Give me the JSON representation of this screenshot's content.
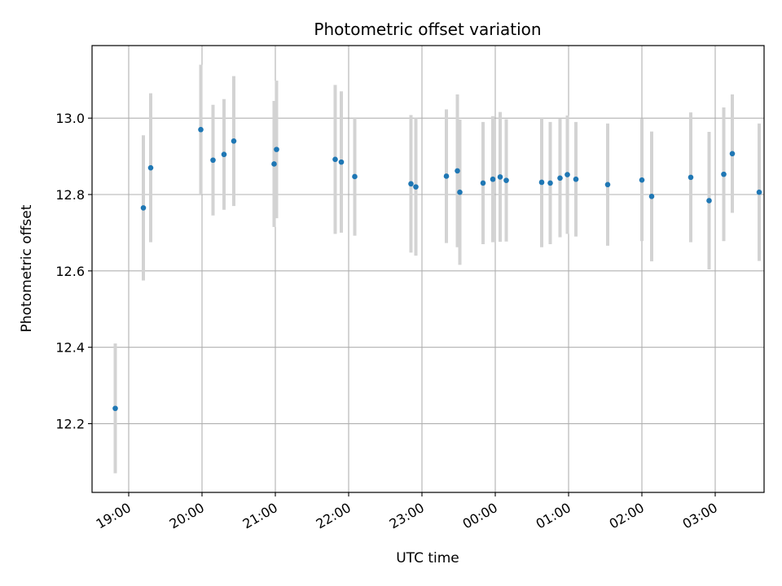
{
  "chart_data": {
    "type": "scatter",
    "title": "Photometric offset variation",
    "xlabel": "UTC time",
    "ylabel": "Photometric offset",
    "grid": true,
    "x_axis": {
      "kind": "time",
      "range": [
        "18:30",
        "03:40"
      ],
      "ticks": [
        "19:00",
        "20:00",
        "21:00",
        "22:00",
        "23:00",
        "00:00",
        "01:00",
        "02:00",
        "03:00"
      ]
    },
    "y_axis": {
      "range": [
        12.02,
        13.19
      ],
      "ticks": [
        "12.2",
        "12.4",
        "12.6",
        "12.8",
        "13.0"
      ]
    },
    "colors": {
      "points": "#1f77b4",
      "error_bars": "#d3d3d3",
      "grid": "#b0b0b0"
    },
    "series": [
      {
        "error_bars": true,
        "points": [
          {
            "x": "18:49",
            "y": 12.24,
            "yerr": 0.17
          },
          {
            "x": "19:12",
            "y": 12.765,
            "yerr": 0.19
          },
          {
            "x": "19:18",
            "y": 12.87,
            "yerr": 0.195
          },
          {
            "x": "19:59",
            "y": 12.97,
            "yerr": 0.17
          },
          {
            "x": "20:09",
            "y": 12.89,
            "yerr": 0.145
          },
          {
            "x": "20:18",
            "y": 12.905,
            "yerr": 0.145
          },
          {
            "x": "20:26",
            "y": 12.94,
            "yerr": 0.17
          },
          {
            "x": "20:59",
            "y": 12.88,
            "yerr": 0.165
          },
          {
            "x": "21:01",
            "y": 12.918,
            "yerr": 0.18
          },
          {
            "x": "21:49",
            "y": 12.892,
            "yerr": 0.195
          },
          {
            "x": "21:54",
            "y": 12.885,
            "yerr": 0.185
          },
          {
            "x": "22:05",
            "y": 12.847,
            "yerr": 0.155
          },
          {
            "x": "22:51",
            "y": 12.828,
            "yerr": 0.18
          },
          {
            "x": "22:55",
            "y": 12.82,
            "yerr": 0.18
          },
          {
            "x": "23:20",
            "y": 12.848,
            "yerr": 0.175
          },
          {
            "x": "23:29",
            "y": 12.862,
            "yerr": 0.2
          },
          {
            "x": "23:31",
            "y": 12.806,
            "yerr": 0.19
          },
          {
            "x": "23:50",
            "y": 12.83,
            "yerr": 0.16
          },
          {
            "x": "23:58",
            "y": 12.84,
            "yerr": 0.165
          },
          {
            "x": "00:04",
            "y": 12.846,
            "yerr": 0.17
          },
          {
            "x": "00:09",
            "y": 12.837,
            "yerr": 0.16
          },
          {
            "x": "00:38",
            "y": 12.832,
            "yerr": 0.17
          },
          {
            "x": "00:45",
            "y": 12.83,
            "yerr": 0.16
          },
          {
            "x": "00:53",
            "y": 12.843,
            "yerr": 0.155
          },
          {
            "x": "00:59",
            "y": 12.852,
            "yerr": 0.155
          },
          {
            "x": "01:06",
            "y": 12.84,
            "yerr": 0.15
          },
          {
            "x": "01:32",
            "y": 12.826,
            "yerr": 0.16
          },
          {
            "x": "02:00",
            "y": 12.838,
            "yerr": 0.16
          },
          {
            "x": "02:08",
            "y": 12.795,
            "yerr": 0.17
          },
          {
            "x": "02:40",
            "y": 12.845,
            "yerr": 0.17
          },
          {
            "x": "02:55",
            "y": 12.784,
            "yerr": 0.18
          },
          {
            "x": "03:07",
            "y": 12.853,
            "yerr": 0.175
          },
          {
            "x": "03:14",
            "y": 12.907,
            "yerr": 0.155
          },
          {
            "x": "03:36",
            "y": 12.806,
            "yerr": 0.18
          }
        ]
      }
    ]
  }
}
